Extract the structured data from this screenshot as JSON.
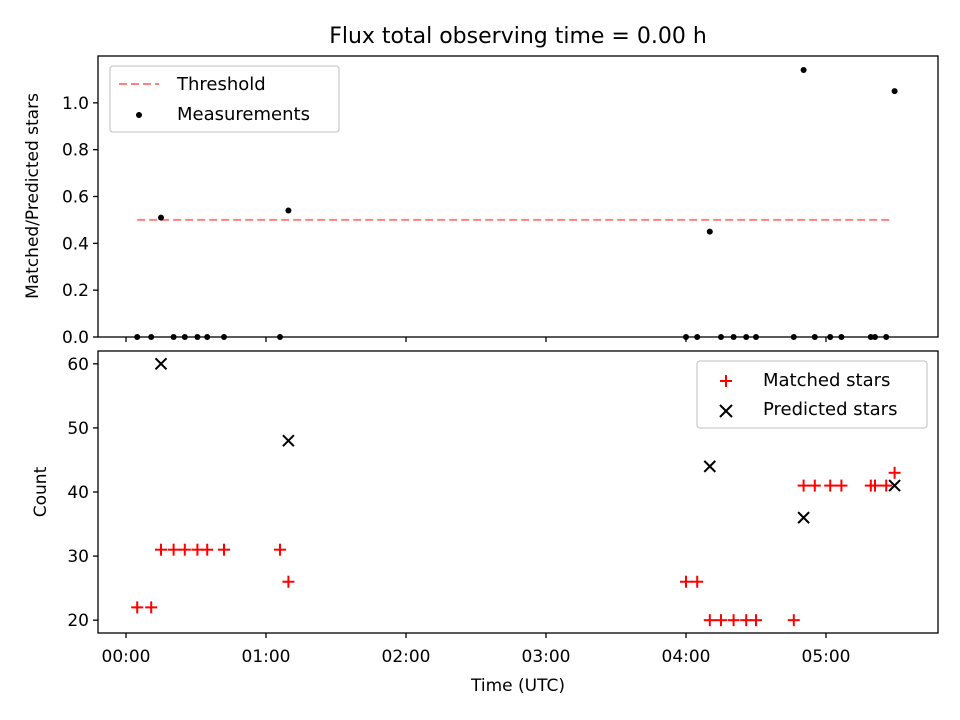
{
  "colors": {
    "threshold": "#ff8080",
    "measurement": "#000000",
    "matched": "#ff0000",
    "predicted": "#000000"
  },
  "chart_data": [
    {
      "type": "scatter",
      "title": "Flux total observing time = 0.00 h",
      "xlabel": "",
      "ylabel": "Matched/Predicted stars",
      "xlim": [
        -0.2,
        5.8
      ],
      "ylim": [
        0,
        1.2
      ],
      "yticks": [
        0.0,
        0.2,
        0.4,
        0.6,
        0.8,
        1.0
      ],
      "ytick_labels": [
        "0.0",
        "0.2",
        "0.4",
        "0.6",
        "0.8",
        "1.0"
      ],
      "xticks": [
        0,
        1,
        2,
        3,
        4,
        5
      ],
      "grid": false,
      "legend_position": "upper left",
      "threshold": {
        "name": "Threshold",
        "y": 0.5,
        "x_range": [
          0.08,
          5.47
        ],
        "style": "dashed"
      },
      "series": [
        {
          "name": "Measurements",
          "marker": "dot",
          "x": [
            0.08,
            0.18,
            0.25,
            0.34,
            0.42,
            0.51,
            0.58,
            0.7,
            1.1,
            1.16,
            4.0,
            4.08,
            4.17,
            4.25,
            4.34,
            4.43,
            4.5,
            4.77,
            4.84,
            4.92,
            5.03,
            5.11,
            5.32,
            5.35,
            5.43,
            5.49
          ],
          "y": [
            0,
            0,
            0.51,
            0,
            0,
            0,
            0,
            0,
            0,
            0.54,
            0,
            0,
            0.45,
            0,
            0,
            0,
            0,
            0,
            1.14,
            0,
            0,
            0,
            0,
            0,
            0,
            1.05
          ]
        }
      ]
    },
    {
      "type": "scatter",
      "title": "",
      "xlabel": "Time (UTC)",
      "ylabel": "Count",
      "xlim": [
        -0.2,
        5.8
      ],
      "ylim": [
        18,
        62
      ],
      "yticks": [
        20,
        30,
        40,
        50,
        60
      ],
      "ytick_labels": [
        "20",
        "30",
        "40",
        "50",
        "60"
      ],
      "xticks": [
        0,
        1,
        2,
        3,
        4,
        5
      ],
      "xtick_labels": [
        "00:00",
        "01:00",
        "02:00",
        "03:00",
        "04:00",
        "05:00"
      ],
      "grid": false,
      "legend_position": "upper right",
      "series": [
        {
          "name": "Matched stars",
          "marker": "plus",
          "x": [
            0.08,
            0.18,
            0.25,
            0.34,
            0.42,
            0.51,
            0.58,
            0.7,
            1.1,
            1.16,
            4.0,
            4.08,
            4.17,
            4.25,
            4.34,
            4.43,
            4.5,
            4.77,
            4.84,
            4.92,
            5.03,
            5.11,
            5.32,
            5.35,
            5.43,
            5.49
          ],
          "y": [
            22,
            22,
            31,
            31,
            31,
            31,
            31,
            31,
            31,
            26,
            26,
            26,
            20,
            20,
            20,
            20,
            20,
            20,
            41,
            41,
            41,
            41,
            41,
            41,
            41,
            43
          ]
        },
        {
          "name": "Predicted stars",
          "marker": "x",
          "x": [
            0.25,
            1.16,
            4.17,
            4.84,
            5.49
          ],
          "y": [
            60,
            48,
            44,
            36,
            41
          ]
        }
      ]
    }
  ]
}
